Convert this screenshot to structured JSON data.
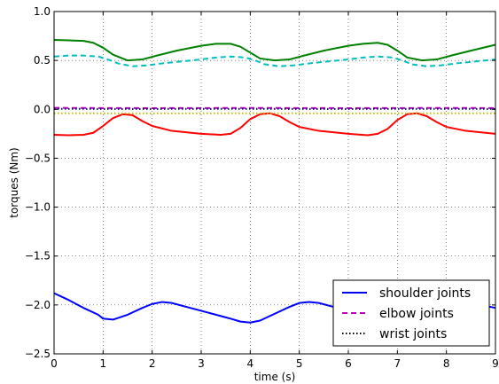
{
  "chart_data": {
    "type": "line",
    "xlabel": "time (s)",
    "ylabel": "torques (Nm)",
    "xlim": [
      0,
      9
    ],
    "ylim": [
      -2.5,
      1.0
    ],
    "xticks": [
      0,
      1,
      2,
      3,
      4,
      5,
      6,
      7,
      8,
      9
    ],
    "xtick_labels": [
      "0",
      "1",
      "2",
      "3",
      "4",
      "5",
      "6",
      "7",
      "8",
      "9"
    ],
    "yticks": [
      -2.5,
      -2.0,
      -1.5,
      -1.0,
      -0.5,
      0.0,
      0.5,
      1.0
    ],
    "ytick_labels": [
      "−2.5",
      "−2.0",
      "−1.5",
      "−1.0",
      "−0.5",
      "0.0",
      "0.5",
      "1.0"
    ],
    "grid": true,
    "legend_position": "lower-right",
    "legend": [
      {
        "label": "shoulder joints",
        "color": "#0000ff",
        "style": "solid"
      },
      {
        "label": "elbow joints",
        "color": "#bf00bf",
        "style": "dashed"
      },
      {
        "label": "wrist joints",
        "color": "#000000",
        "style": "dotted"
      }
    ],
    "series": [
      {
        "color": "#0000ff",
        "style": "solid",
        "x": [
          0,
          0.3,
          0.6,
          0.9,
          1.0,
          1.2,
          1.5,
          1.8,
          2.0,
          2.2,
          2.4,
          2.7,
          3.0,
          3.3,
          3.6,
          3.8,
          4.0,
          4.2,
          4.5,
          4.8,
          5.0,
          5.2,
          5.4,
          5.7,
          6.0,
          6.3,
          6.6,
          6.8,
          7.0,
          7.2,
          7.5,
          7.8,
          8.0,
          8.2,
          8.5,
          8.8,
          9.0
        ],
        "y": [
          -1.88,
          -1.95,
          -2.03,
          -2.1,
          -2.14,
          -2.15,
          -2.1,
          -2.03,
          -1.99,
          -1.97,
          -1.98,
          -2.02,
          -2.06,
          -2.1,
          -2.14,
          -2.17,
          -2.18,
          -2.16,
          -2.09,
          -2.02,
          -1.98,
          -1.97,
          -1.98,
          -2.02,
          -2.06,
          -2.1,
          -2.14,
          -2.17,
          -2.18,
          -2.16,
          -2.09,
          -2.02,
          -1.98,
          -1.97,
          -1.98,
          -2.01,
          -2.03
        ]
      },
      {
        "color": "#008000",
        "style": "solid",
        "x": [
          0,
          0.3,
          0.6,
          0.8,
          1.0,
          1.2,
          1.5,
          1.8,
          2.1,
          2.5,
          3.0,
          3.3,
          3.6,
          3.8,
          4.0,
          4.2,
          4.5,
          4.8,
          5.1,
          5.5,
          6.0,
          6.3,
          6.6,
          6.8,
          7.0,
          7.2,
          7.5,
          7.8,
          8.1,
          8.5,
          9.0
        ],
        "y": [
          0.71,
          0.705,
          0.7,
          0.68,
          0.63,
          0.56,
          0.5,
          0.51,
          0.55,
          0.6,
          0.65,
          0.67,
          0.67,
          0.64,
          0.58,
          0.52,
          0.5,
          0.51,
          0.55,
          0.6,
          0.65,
          0.67,
          0.68,
          0.66,
          0.6,
          0.53,
          0.5,
          0.51,
          0.55,
          0.6,
          0.66
        ]
      },
      {
        "color": "#00bfbf",
        "style": "dashed",
        "x": [
          0,
          0.3,
          0.6,
          0.9,
          1.1,
          1.3,
          1.6,
          1.9,
          2.2,
          2.6,
          3.0,
          3.3,
          3.6,
          3.9,
          4.1,
          4.3,
          4.6,
          4.9,
          5.2,
          5.6,
          6.0,
          6.3,
          6.6,
          6.9,
          7.1,
          7.3,
          7.6,
          7.9,
          8.2,
          8.6,
          9.0
        ],
        "y": [
          0.54,
          0.55,
          0.55,
          0.54,
          0.51,
          0.47,
          0.44,
          0.45,
          0.47,
          0.49,
          0.51,
          0.53,
          0.54,
          0.53,
          0.5,
          0.46,
          0.44,
          0.45,
          0.47,
          0.49,
          0.51,
          0.53,
          0.54,
          0.53,
          0.5,
          0.46,
          0.44,
          0.45,
          0.47,
          0.49,
          0.51
        ]
      },
      {
        "color": "#ff0000",
        "style": "solid",
        "x": [
          0,
          0.3,
          0.6,
          0.8,
          1.0,
          1.2,
          1.4,
          1.6,
          1.8,
          2.0,
          2.4,
          3.0,
          3.4,
          3.6,
          3.8,
          4.0,
          4.2,
          4.4,
          4.6,
          4.8,
          5.0,
          5.4,
          6.0,
          6.4,
          6.6,
          6.8,
          7.0,
          7.2,
          7.4,
          7.6,
          7.8,
          8.0,
          8.4,
          9.0
        ],
        "y": [
          -0.26,
          -0.265,
          -0.26,
          -0.24,
          -0.17,
          -0.09,
          -0.05,
          -0.06,
          -0.12,
          -0.17,
          -0.22,
          -0.25,
          -0.26,
          -0.25,
          -0.19,
          -0.1,
          -0.05,
          -0.04,
          -0.07,
          -0.13,
          -0.18,
          -0.22,
          -0.25,
          -0.265,
          -0.25,
          -0.2,
          -0.11,
          -0.05,
          -0.04,
          -0.07,
          -0.13,
          -0.18,
          -0.22,
          -0.25
        ]
      },
      {
        "color": "#bf00bf",
        "style": "dashed",
        "x": [
          0,
          1,
          2,
          3,
          4,
          5,
          6,
          7,
          8,
          9
        ],
        "y": [
          0.015,
          0.013,
          0.012,
          0.013,
          0.014,
          0.013,
          0.012,
          0.013,
          0.014,
          0.013
        ]
      },
      {
        "color": "#000080",
        "style": "dotted",
        "x": [
          0,
          1,
          2,
          3,
          4,
          5,
          6,
          7,
          8,
          9
        ],
        "y": [
          0.005,
          0.004,
          0.004,
          0.005,
          0.005,
          0.004,
          0.004,
          0.005,
          0.005,
          0.004
        ]
      },
      {
        "color": "#bfbf00",
        "style": "dotted",
        "x": [
          0,
          1,
          2,
          3,
          4,
          5,
          6,
          7,
          8,
          9
        ],
        "y": [
          -0.04,
          -0.041,
          -0.042,
          -0.041,
          -0.04,
          -0.041,
          -0.042,
          -0.041,
          -0.04,
          -0.041
        ]
      }
    ]
  }
}
